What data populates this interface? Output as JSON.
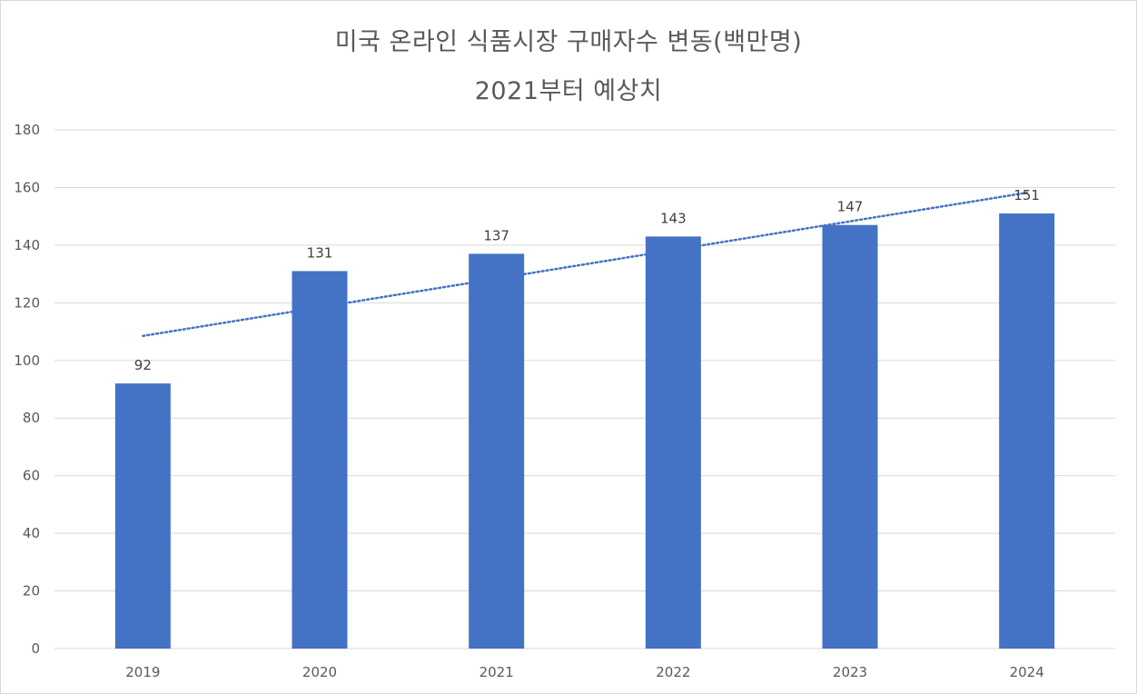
{
  "chart_data": {
    "type": "bar",
    "title": "미국 온라인 식품시장 구매자수 변동(백만명)",
    "subtitle": "2021부터 예상치",
    "categories": [
      "2019",
      "2020",
      "2021",
      "2022",
      "2023",
      "2024"
    ],
    "series": [
      {
        "values": [
          92,
          131,
          137,
          143,
          147,
          151
        ],
        "color": "#4472c4",
        "data_labels": [
          "92",
          "131",
          "137",
          "143",
          "147",
          "151"
        ]
      }
    ],
    "trendline": {
      "type": "linear",
      "style": "dotted",
      "color": "#4472c4",
      "start_value": 108.5,
      "end_value": 158.2
    },
    "ylim": [
      0,
      180
    ],
    "yticks": [
      "0",
      "20",
      "40",
      "60",
      "80",
      "100",
      "120",
      "140",
      "160",
      "180"
    ],
    "grid": true,
    "xlabel": "",
    "ylabel": ""
  }
}
